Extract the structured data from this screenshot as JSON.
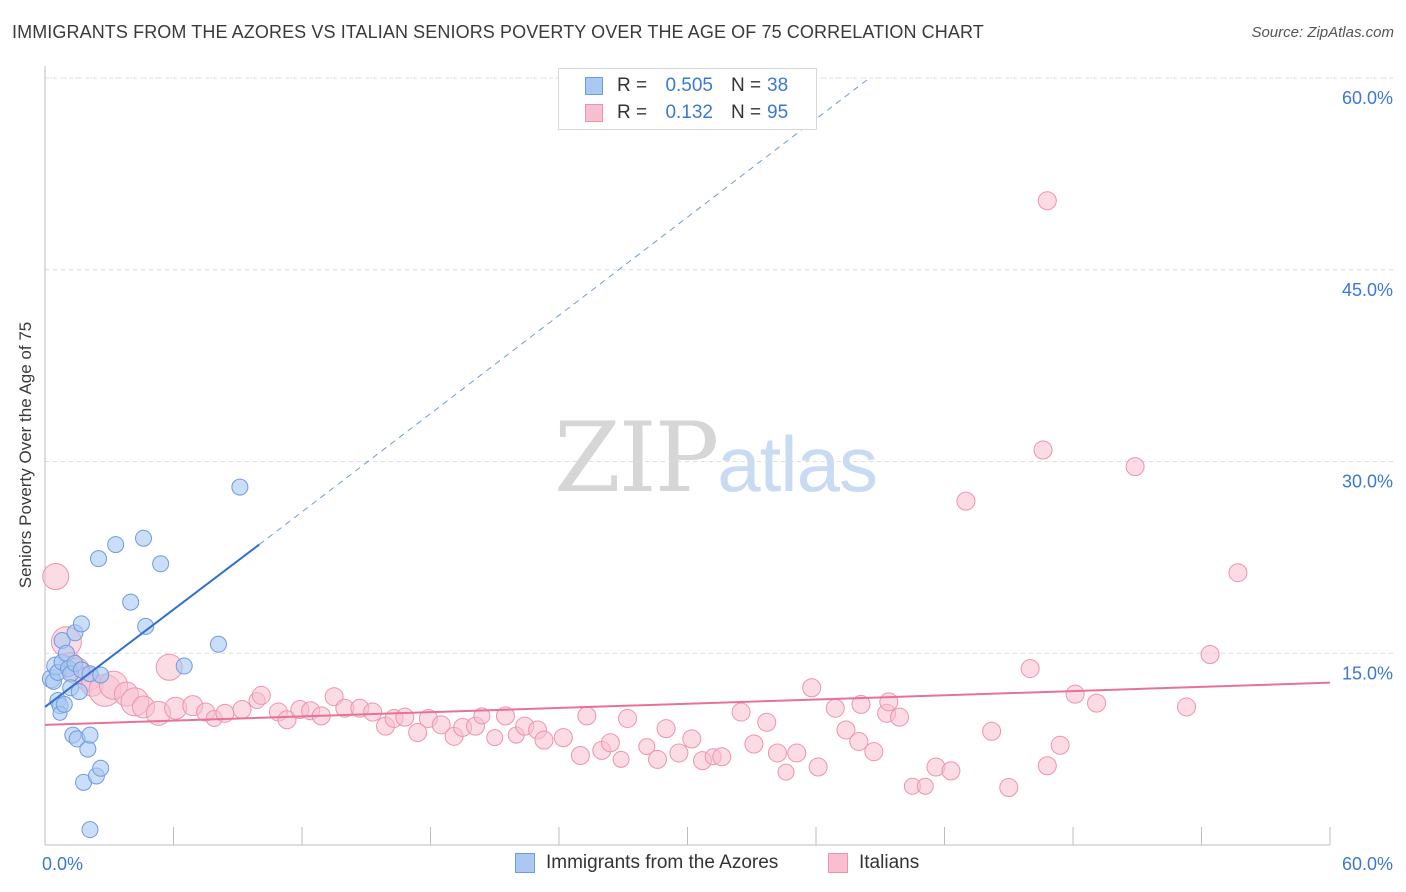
{
  "title": "IMMIGRANTS FROM THE AZORES VS ITALIAN SENIORS POVERTY OVER THE AGE OF 75 CORRELATION CHART",
  "source": "Source: ZipAtlas.com",
  "watermark": {
    "zip": "ZIP",
    "atlas": "atlas"
  },
  "legend": {
    "rows": [
      {
        "r_label": "R =",
        "r_value": "0.505",
        "n_label": "N =",
        "n_value": "38",
        "fill": "#a9c8f2",
        "stroke": "#6f9be0"
      },
      {
        "r_label": "R =",
        "r_value": "0.132",
        "n_label": "N =",
        "n_value": "95",
        "fill": "#f8bfd0",
        "stroke": "#ee93ad"
      }
    ]
  },
  "bottom_legend": {
    "azores": "Immigrants from the Azores",
    "italians": "Italians"
  },
  "chart_data": {
    "type": "scatter",
    "title": "IMMIGRANTS FROM THE AZORES VS ITALIAN SENIORS POVERTY OVER THE AGE OF 75 CORRELATION CHART",
    "xlabel": "",
    "ylabel": "Seniors Poverty Over the Age of 75",
    "xlim": [
      0,
      60
    ],
    "ylim": [
      0,
      60
    ],
    "x_tick_labels": [
      {
        "value": 0,
        "label": "0.0%"
      },
      {
        "value": 60,
        "label": "60.0%"
      }
    ],
    "y_tick_labels": [
      {
        "value": 15,
        "label": "15.0%"
      },
      {
        "value": 30,
        "label": "30.0%"
      },
      {
        "value": 45,
        "label": "45.0%"
      },
      {
        "value": 60,
        "label": "60.0%"
      }
    ],
    "x_minor_ticks": [
      0,
      6,
      12,
      18,
      24,
      30,
      36,
      42,
      48,
      54,
      60
    ],
    "y_gridlines": [
      15,
      30,
      45,
      60
    ],
    "colors": {
      "azores": "#a9c8f2",
      "azores_stroke": "#6f9be0",
      "azores_line": "#2f6fd0",
      "italians": "#f8bfd0",
      "italians_stroke": "#ee93ad",
      "italians_line": "#e8719a",
      "tick_label": "#3b78d4"
    },
    "series": [
      {
        "name": "Immigrants from the Azores",
        "trend": {
          "x": [
            0,
            10
          ],
          "y": [
            10.8,
            23.5
          ],
          "dashed_to": [
            38.5,
            60
          ]
        },
        "points": [
          [
            0.3,
            13.0,
            9
          ],
          [
            0.4,
            12.8,
            8
          ],
          [
            0.5,
            14.0,
            9
          ],
          [
            0.6,
            13.5,
            8
          ],
          [
            0.6,
            11.3,
            8
          ],
          [
            0.7,
            10.9,
            8
          ],
          [
            0.7,
            10.3,
            7
          ],
          [
            0.8,
            16.0,
            8
          ],
          [
            0.8,
            14.3,
            8
          ],
          [
            0.9,
            11.0,
            8
          ],
          [
            1.0,
            15.0,
            8
          ],
          [
            1.1,
            13.8,
            8
          ],
          [
            1.2,
            13.4,
            8
          ],
          [
            1.2,
            12.3,
            8
          ],
          [
            1.3,
            8.6,
            8
          ],
          [
            1.4,
            14.2,
            8
          ],
          [
            1.4,
            16.6,
            8
          ],
          [
            1.5,
            8.3,
            8
          ],
          [
            1.6,
            12.0,
            8
          ],
          [
            1.7,
            17.3,
            8
          ],
          [
            1.7,
            13.7,
            8
          ],
          [
            1.8,
            4.9,
            8
          ],
          [
            2.0,
            7.5,
            8
          ],
          [
            2.1,
            13.4,
            8
          ],
          [
            2.1,
            8.6,
            8
          ],
          [
            2.4,
            5.4,
            8
          ],
          [
            2.1,
            1.2,
            8
          ],
          [
            2.5,
            22.4,
            8
          ],
          [
            2.6,
            6.0,
            8
          ],
          [
            2.6,
            13.3,
            8
          ],
          [
            3.3,
            23.5,
            8
          ],
          [
            4.0,
            19.0,
            8
          ],
          [
            4.6,
            24.0,
            8
          ],
          [
            4.7,
            17.1,
            8
          ],
          [
            5.4,
            22.0,
            8
          ],
          [
            6.5,
            14.0,
            8
          ],
          [
            8.1,
            15.7,
            8
          ],
          [
            9.1,
            28.0,
            8
          ]
        ]
      },
      {
        "name": "Italians",
        "trend": {
          "x": [
            0,
            60
          ],
          "y": [
            9.4,
            12.7
          ]
        },
        "points": [
          [
            0.5,
            21.0,
            13
          ],
          [
            1.0,
            15.9,
            15
          ],
          [
            1.2,
            14.2,
            11
          ],
          [
            1.5,
            13.6,
            13
          ],
          [
            2.0,
            13.0,
            12
          ],
          [
            2.2,
            12.5,
            11
          ],
          [
            2.8,
            12.1,
            16
          ],
          [
            3.2,
            12.5,
            14
          ],
          [
            3.8,
            11.8,
            12
          ],
          [
            4.2,
            11.2,
            14
          ],
          [
            4.6,
            10.8,
            11
          ],
          [
            5.3,
            10.3,
            12
          ],
          [
            5.8,
            13.9,
            13
          ],
          [
            6.1,
            10.7,
            11
          ],
          [
            6.9,
            10.9,
            10
          ],
          [
            7.5,
            10.4,
            9
          ],
          [
            7.9,
            9.9,
            8
          ],
          [
            8.4,
            10.3,
            9
          ],
          [
            9.2,
            10.6,
            9
          ],
          [
            9.9,
            11.3,
            8
          ],
          [
            10.1,
            11.7,
            9
          ],
          [
            10.9,
            10.4,
            9
          ],
          [
            11.3,
            9.8,
            9
          ],
          [
            11.9,
            10.6,
            9
          ],
          [
            12.4,
            10.5,
            9
          ],
          [
            12.9,
            10.1,
            9
          ],
          [
            13.5,
            11.6,
            9
          ],
          [
            14.0,
            10.7,
            9
          ],
          [
            14.7,
            10.7,
            9
          ],
          [
            15.3,
            10.4,
            9
          ],
          [
            15.9,
            9.3,
            9
          ],
          [
            16.3,
            9.9,
            9
          ],
          [
            16.8,
            10.0,
            9
          ],
          [
            17.4,
            8.8,
            9
          ],
          [
            17.9,
            9.9,
            9
          ],
          [
            18.5,
            9.4,
            9
          ],
          [
            19.1,
            8.5,
            9
          ],
          [
            19.5,
            9.2,
            9
          ],
          [
            20.1,
            9.3,
            9
          ],
          [
            20.4,
            10.1,
            8
          ],
          [
            21.0,
            8.4,
            8
          ],
          [
            21.5,
            10.1,
            9
          ],
          [
            22.0,
            8.6,
            8
          ],
          [
            22.4,
            9.3,
            9
          ],
          [
            23.0,
            9.0,
            9
          ],
          [
            23.3,
            8.2,
            9
          ],
          [
            24.2,
            8.4,
            9
          ],
          [
            25.0,
            7.0,
            9
          ],
          [
            25.3,
            10.1,
            9
          ],
          [
            26.0,
            7.4,
            9
          ],
          [
            26.4,
            8.0,
            9
          ],
          [
            26.9,
            6.7,
            8
          ],
          [
            27.2,
            9.9,
            9
          ],
          [
            28.1,
            7.7,
            8
          ],
          [
            28.6,
            6.7,
            9
          ],
          [
            29.0,
            9.1,
            9
          ],
          [
            29.6,
            7.2,
            9
          ],
          [
            30.2,
            8.3,
            9
          ],
          [
            30.7,
            6.6,
            9
          ],
          [
            31.2,
            6.9,
            8
          ],
          [
            31.6,
            6.9,
            9
          ],
          [
            32.5,
            10.4,
            9
          ],
          [
            33.1,
            7.9,
            9
          ],
          [
            33.7,
            9.6,
            9
          ],
          [
            34.2,
            7.2,
            9
          ],
          [
            34.6,
            5.7,
            8
          ],
          [
            35.1,
            7.2,
            9
          ],
          [
            35.8,
            12.3,
            9
          ],
          [
            36.1,
            6.1,
            9
          ],
          [
            36.9,
            10.7,
            9
          ],
          [
            37.4,
            9.0,
            9
          ],
          [
            38.0,
            8.1,
            9
          ],
          [
            38.1,
            11.0,
            9
          ],
          [
            38.7,
            7.3,
            9
          ],
          [
            39.3,
            10.3,
            9
          ],
          [
            39.4,
            11.2,
            9
          ],
          [
            39.9,
            10.0,
            9
          ],
          [
            40.5,
            4.6,
            8
          ],
          [
            41.1,
            4.6,
            8
          ],
          [
            41.6,
            6.1,
            9
          ],
          [
            42.3,
            5.8,
            9
          ],
          [
            43.0,
            26.9,
            9
          ],
          [
            44.2,
            8.9,
            9
          ],
          [
            45.0,
            4.5,
            9
          ],
          [
            46.0,
            13.8,
            9
          ],
          [
            46.6,
            30.9,
            9
          ],
          [
            46.8,
            50.4,
            9
          ],
          [
            46.8,
            6.2,
            9
          ],
          [
            47.4,
            7.8,
            9
          ],
          [
            48.1,
            11.8,
            9
          ],
          [
            49.1,
            11.1,
            9
          ],
          [
            50.9,
            29.6,
            9
          ],
          [
            53.3,
            10.8,
            9
          ],
          [
            54.4,
            14.9,
            9
          ],
          [
            55.7,
            21.3,
            9
          ]
        ]
      }
    ]
  }
}
